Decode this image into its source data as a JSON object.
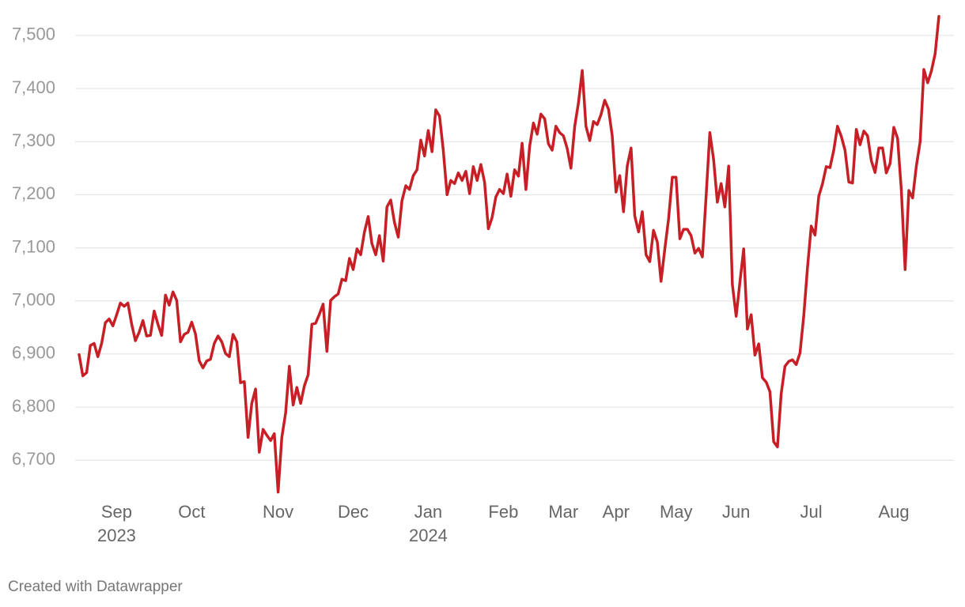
{
  "chart_data": {
    "type": "line",
    "footer": "Created with Datawrapper",
    "categories": [
      null,
      null,
      null,
      null,
      null,
      null,
      null,
      null,
      null,
      null,
      "Sep 2023",
      null,
      null,
      null,
      null,
      null,
      null,
      null,
      null,
      null,
      null,
      null,
      null,
      null,
      null,
      null,
      null,
      null,
      null,
      null,
      "Oct",
      null,
      null,
      null,
      null,
      null,
      null,
      null,
      null,
      null,
      null,
      null,
      null,
      null,
      null,
      null,
      null,
      null,
      null,
      null,
      null,
      null,
      null,
      "Nov",
      null,
      null,
      null,
      null,
      null,
      null,
      null,
      null,
      null,
      null,
      null,
      null,
      null,
      null,
      null,
      null,
      null,
      null,
      null,
      "Dec",
      null,
      null,
      null,
      null,
      null,
      null,
      null,
      null,
      null,
      null,
      null,
      null,
      null,
      null,
      null,
      null,
      null,
      null,
      null,
      "Jan 2024",
      null,
      null,
      null,
      null,
      null,
      null,
      null,
      null,
      null,
      null,
      null,
      null,
      null,
      null,
      null,
      null,
      null,
      null,
      null,
      "Feb",
      null,
      null,
      null,
      null,
      null,
      null,
      null,
      null,
      null,
      null,
      null,
      null,
      null,
      null,
      null,
      "Mar",
      null,
      null,
      null,
      null,
      null,
      null,
      null,
      null,
      null,
      null,
      null,
      null,
      null,
      "Apr",
      null,
      null,
      null,
      null,
      null,
      null,
      null,
      null,
      null,
      null,
      null,
      null,
      null,
      null,
      null,
      "May",
      null,
      null,
      null,
      null,
      null,
      null,
      null,
      null,
      null,
      null,
      null,
      null,
      null,
      null,
      null,
      "Jun",
      null,
      null,
      null,
      null,
      null,
      null,
      null,
      null,
      null,
      null,
      null,
      null,
      null,
      null,
      null,
      null,
      null,
      null,
      null,
      "Jul",
      null,
      null,
      null,
      null,
      null,
      null,
      null,
      null,
      null,
      null,
      null,
      null,
      null,
      null,
      null,
      null,
      null,
      null,
      null,
      null,
      null,
      "Aug",
      null,
      null,
      null,
      null,
      null,
      null,
      null,
      null,
      null,
      null,
      null,
      null
    ],
    "series": [
      {
        "color": "#c62026",
        "values": [
          6899,
          6859,
          6865,
          6916,
          6920,
          6895,
          6920,
          6959,
          6966,
          6953,
          6974,
          6996,
          6990,
          6996,
          6956,
          6925,
          6941,
          6963,
          6934,
          6935,
          6981,
          6956,
          6935,
          7011,
          6992,
          7017,
          7001,
          6923,
          6937,
          6941,
          6960,
          6938,
          6887,
          6874,
          6887,
          6890,
          6920,
          6934,
          6923,
          6901,
          6895,
          6937,
          6923,
          6846,
          6848,
          6743,
          6807,
          6834,
          6715,
          6758,
          6747,
          6737,
          6750,
          6640,
          6743,
          6789,
          6877,
          6804,
          6837,
          6807,
          6840,
          6861,
          6956,
          6958,
          6975,
          6994,
          6905,
          7001,
          7008,
          7013,
          7041,
          7038,
          7080,
          7059,
          7098,
          7087,
          7130,
          7159,
          7108,
          7087,
          7123,
          7075,
          7177,
          7190,
          7148,
          7120,
          7189,
          7217,
          7210,
          7236,
          7247,
          7303,
          7273,
          7321,
          7281,
          7360,
          7348,
          7284,
          7200,
          7227,
          7221,
          7241,
          7227,
          7244,
          7202,
          7253,
          7227,
          7257,
          7224,
          7136,
          7157,
          7196,
          7210,
          7202,
          7239,
          7197,
          7247,
          7235,
          7297,
          7210,
          7291,
          7335,
          7314,
          7352,
          7343,
          7296,
          7284,
          7329,
          7317,
          7311,
          7287,
          7250,
          7329,
          7373,
          7434,
          7329,
          7302,
          7338,
          7332,
          7351,
          7378,
          7361,
          7311,
          7205,
          7236,
          7168,
          7254,
          7288,
          7160,
          7130,
          7168,
          7087,
          7074,
          7133,
          7111,
          7037,
          7098,
          7154,
          7233,
          7233,
          7117,
          7135,
          7135,
          7123,
          7090,
          7099,
          7083,
          7197,
          7317,
          7266,
          7186,
          7221,
          7177,
          7254,
          7031,
          6971,
          7035,
          7098,
          6947,
          6974,
          6898,
          6919,
          6855,
          6847,
          6829,
          6735,
          6725,
          6825,
          6877,
          6886,
          6889,
          6880,
          6902,
          6971,
          7063,
          7141,
          7124,
          7197,
          7221,
          7253,
          7251,
          7284,
          7329,
          7310,
          7284,
          7224,
          7222,
          7323,
          7294,
          7320,
          7311,
          7264,
          7242,
          7288,
          7288,
          7241,
          7259,
          7327,
          7306,
          7209,
          7059,
          7208,
          7194,
          7254,
          7300,
          7436,
          7411,
          7433,
          7466,
          7536
        ]
      }
    ],
    "ylim": [
      6620,
      7540
    ],
    "yticks": [
      {
        "value": 6700,
        "label": "6,700"
      },
      {
        "value": 6800,
        "label": "6,800"
      },
      {
        "value": 6900,
        "label": "6,900"
      },
      {
        "value": 7000,
        "label": "7,000"
      },
      {
        "value": 7100,
        "label": "7,100"
      },
      {
        "value": 7200,
        "label": "7,200"
      },
      {
        "value": 7300,
        "label": "7,300"
      },
      {
        "value": 7400,
        "label": "7,400"
      },
      {
        "value": 7500,
        "label": "7,500"
      }
    ],
    "grid": true
  }
}
